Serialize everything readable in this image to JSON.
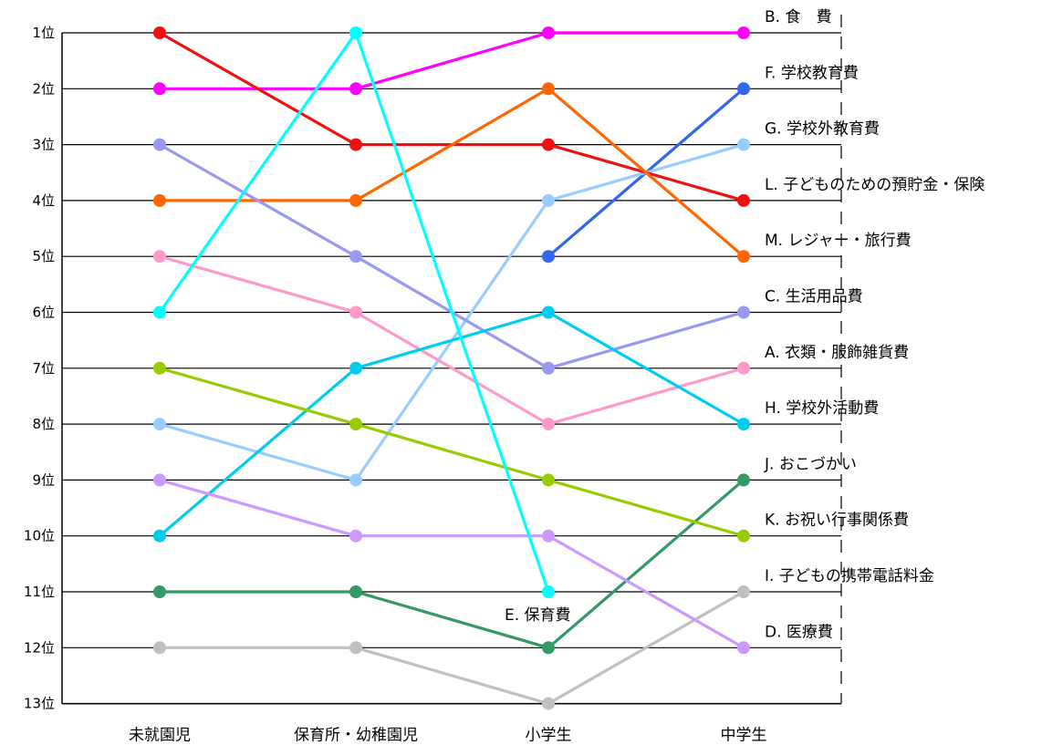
{
  "chart_data": {
    "type": "line",
    "categories": [
      "未就園児",
      "保育所・幼稚園児",
      "小学生",
      "中学生"
    ],
    "y_tick_labels": [
      "1位",
      "2位",
      "3位",
      "4位",
      "5位",
      "6位",
      "7位",
      "8位",
      "9位",
      "10位",
      "11位",
      "12位",
      "13位"
    ],
    "ylim": [
      1,
      13
    ],
    "y_inverted": true,
    "grid": true,
    "series": [
      {
        "label": "B. 食　費",
        "color": "#ff00ff",
        "ranks": [
          2,
          2,
          1,
          1
        ]
      },
      {
        "label": "F. 学校教育費",
        "color": "#3366ee",
        "ranks": [
          null,
          null,
          5,
          2
        ]
      },
      {
        "label": "G. 学校外教育費",
        "color": "#99ccff",
        "ranks": [
          8,
          9,
          4,
          3
        ]
      },
      {
        "label": "L. 子どものための預貯金・保険",
        "color": "#ee1111",
        "ranks": [
          1,
          3,
          3,
          4
        ]
      },
      {
        "label": "M. レジャー・旅行費",
        "color": "#ff6600",
        "ranks": [
          4,
          4,
          2,
          5
        ]
      },
      {
        "label": "C. 生活用品費",
        "color": "#9999ee",
        "ranks": [
          3,
          5,
          7,
          6
        ]
      },
      {
        "label": "A. 衣類・服飾雑貨費",
        "color": "#ff99cc",
        "ranks": [
          5,
          6,
          8,
          7
        ]
      },
      {
        "label": "H. 学校外活動費",
        "color": "#00ccee",
        "ranks": [
          10,
          7,
          6,
          8
        ]
      },
      {
        "label": "J. おこづかい",
        "color": "#339966",
        "ranks": [
          11,
          11,
          12,
          9
        ]
      },
      {
        "label": "K. お祝い行事関係費",
        "color": "#99cc00",
        "ranks": [
          7,
          8,
          9,
          10
        ]
      },
      {
        "label": "I. 子どもの携帯電話料金",
        "color": "#c0c0c0",
        "ranks": [
          12,
          12,
          13,
          11
        ]
      },
      {
        "label": "D. 医療費",
        "color": "#cc99ff",
        "ranks": [
          9,
          10,
          10,
          12
        ]
      },
      {
        "label": "E. 保育費",
        "color": "#00ffff",
        "ranks": [
          6,
          1,
          11,
          null
        ]
      }
    ]
  }
}
